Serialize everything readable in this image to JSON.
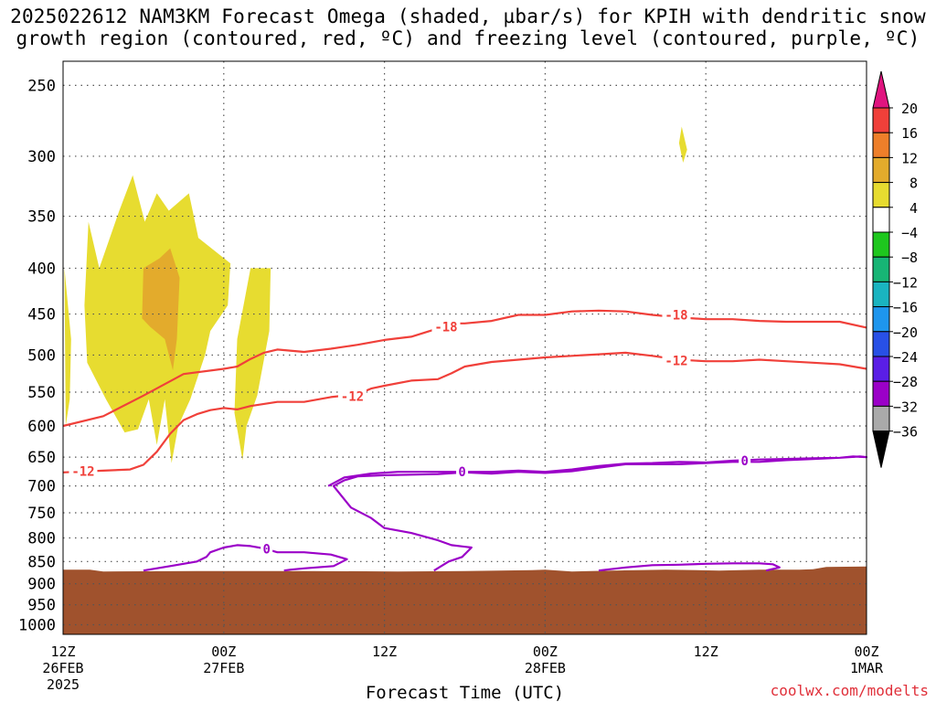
{
  "title": {
    "line1": "2025022612 NAM3KM Forecast Omega (shaded, µbar/s) for KPIH with dendritic snow",
    "line2": "growth region (contoured, red, ºC) and freezing level (contoured, purple, ºC)"
  },
  "credit": "coolwx.com/modelts",
  "colors": {
    "dgz_contour": "#f0403a",
    "freezing_contour": "#9b00c8",
    "terrain": "#a0522d",
    "omega_4_8": "#e7dc30",
    "omega_12_16": "#e3ab2c",
    "grid": "#555555"
  },
  "chart_data": {
    "type": "heatmap",
    "xlabel": "Forecast Time (UTC)",
    "ylabel": "",
    "x_range_hours": [
      0,
      60
    ],
    "y_range_mb": [
      235,
      1025
    ],
    "y_scale": "log-pressure (inverted)",
    "grid": true,
    "x_ticks": [
      {
        "hour": 0,
        "label1": "12Z",
        "label2": "26FEB",
        "label3": "2025"
      },
      {
        "hour": 12,
        "label1": "00Z",
        "label2": "27FEB",
        "label3": ""
      },
      {
        "hour": 24,
        "label1": "12Z",
        "label2": "",
        "label3": ""
      },
      {
        "hour": 36,
        "label1": "00Z",
        "label2": "28FEB",
        "label3": ""
      },
      {
        "hour": 48,
        "label1": "12Z",
        "label2": "",
        "label3": ""
      },
      {
        "hour": 60,
        "label1": "00Z",
        "label2": "1MAR",
        "label3": ""
      }
    ],
    "y_ticks": [
      250,
      300,
      350,
      400,
      450,
      500,
      550,
      600,
      650,
      700,
      750,
      800,
      850,
      900,
      950,
      1000
    ],
    "colorbar": {
      "levels": [
        20,
        16,
        12,
        8,
        4,
        -4,
        -8,
        -12,
        -16,
        -20,
        -24,
        -28,
        -32,
        -36
      ],
      "colors": [
        "#e0147f",
        "#f0403a",
        "#ee7f2a",
        "#e3ab2c",
        "#e7dc30",
        "#ffffff",
        "#1ec71e",
        "#17b575",
        "#1ab4c0",
        "#1e96ee",
        "#2850e6",
        "#5a1ee6",
        "#9b00c8",
        "#aaaaaa",
        "#000000"
      ]
    },
    "omega_regions": [
      {
        "value_range": "4-8",
        "points": [
          [
            0.1,
            400
          ],
          [
            0.6,
            480
          ],
          [
            0.5,
            560
          ],
          [
            0.2,
            600
          ]
        ]
      },
      {
        "value_range": "4-8",
        "points": [
          [
            1.6,
            440
          ],
          [
            1.9,
            355
          ],
          [
            2.7,
            400
          ],
          [
            4.2,
            345
          ],
          [
            5.2,
            315
          ],
          [
            6.1,
            355
          ],
          [
            7.0,
            330
          ],
          [
            7.9,
            345
          ],
          [
            9.4,
            330
          ],
          [
            10.1,
            370
          ],
          [
            12.5,
            395
          ],
          [
            12.3,
            440
          ],
          [
            11.0,
            470
          ],
          [
            10.6,
            500
          ],
          [
            9.5,
            560
          ],
          [
            8.6,
            600
          ],
          [
            8.1,
            660
          ],
          [
            7.6,
            560
          ],
          [
            7.0,
            630
          ],
          [
            6.4,
            560
          ],
          [
            5.6,
            605
          ],
          [
            4.6,
            610
          ],
          [
            3.2,
            560
          ],
          [
            1.8,
            510
          ]
        ]
      },
      {
        "value_range": "4-8",
        "points": [
          [
            13.0,
            480
          ],
          [
            14.0,
            400
          ],
          [
            15.5,
            400
          ],
          [
            15.4,
            470
          ],
          [
            14.5,
            555
          ],
          [
            13.7,
            600
          ],
          [
            13.4,
            655
          ],
          [
            12.8,
            580
          ]
        ]
      },
      {
        "value_range": "4-8",
        "points": [
          [
            46.2,
            278
          ],
          [
            46.6,
            295
          ],
          [
            46.3,
            305
          ],
          [
            46.0,
            290
          ]
        ]
      },
      {
        "value_range": "12-16",
        "points": [
          [
            6.0,
            400
          ],
          [
            7.2,
            390
          ],
          [
            8.0,
            380
          ],
          [
            8.7,
            410
          ],
          [
            8.5,
            480
          ],
          [
            8.2,
            520
          ],
          [
            7.6,
            480
          ],
          [
            6.5,
            465
          ],
          [
            5.9,
            455
          ]
        ]
      }
    ],
    "series": [
      {
        "label": "-18",
        "points": [
          [
            0,
            600
          ],
          [
            3,
            585
          ],
          [
            6,
            555
          ],
          [
            9,
            525
          ],
          [
            12,
            518
          ],
          [
            13,
            515
          ],
          [
            14,
            505
          ],
          [
            15,
            497
          ],
          [
            16,
            493
          ],
          [
            18,
            496
          ],
          [
            20,
            492
          ],
          [
            22,
            487
          ],
          [
            24,
            481
          ],
          [
            26,
            477
          ],
          [
            28,
            467
          ],
          [
            29,
            461
          ],
          [
            30,
            461
          ],
          [
            32,
            458
          ],
          [
            34,
            451
          ],
          [
            36,
            451
          ],
          [
            38,
            447
          ],
          [
            40,
            446
          ],
          [
            42,
            447
          ],
          [
            44,
            451
          ],
          [
            46,
            454
          ],
          [
            48,
            456
          ],
          [
            50,
            456
          ],
          [
            52,
            458
          ],
          [
            54,
            459
          ],
          [
            56,
            459
          ],
          [
            58,
            459
          ],
          [
            60,
            466
          ]
        ]
      },
      {
        "label": "-12",
        "points": [
          [
            0,
            676
          ],
          [
            3,
            673
          ],
          [
            5,
            671
          ],
          [
            6,
            663
          ],
          [
            7,
            641
          ],
          [
            8,
            612
          ],
          [
            9,
            591
          ],
          [
            10,
            582
          ],
          [
            11,
            576
          ],
          [
            12,
            573
          ],
          [
            13,
            575
          ],
          [
            14,
            570
          ],
          [
            16,
            564
          ],
          [
            18,
            564
          ],
          [
            20,
            557
          ],
          [
            22,
            553
          ],
          [
            23,
            545
          ],
          [
            24,
            541
          ],
          [
            26,
            534
          ],
          [
            28,
            532
          ],
          [
            29,
            524
          ],
          [
            30,
            515
          ],
          [
            32,
            509
          ],
          [
            34,
            506
          ],
          [
            36,
            503
          ],
          [
            38,
            501
          ],
          [
            40,
            499
          ],
          [
            42,
            497
          ],
          [
            44,
            501
          ],
          [
            46,
            506
          ],
          [
            48,
            508
          ],
          [
            50,
            508
          ],
          [
            52,
            506
          ],
          [
            54,
            508
          ],
          [
            56,
            510
          ],
          [
            58,
            512
          ],
          [
            60,
            518
          ]
        ]
      },
      {
        "label": "0",
        "points": [
          [
            19.8,
            700
          ],
          [
            21,
            685
          ],
          [
            23,
            678
          ],
          [
            25,
            675
          ],
          [
            28,
            675
          ],
          [
            30,
            675
          ],
          [
            32,
            675
          ],
          [
            34,
            673
          ],
          [
            36,
            675
          ],
          [
            38,
            671
          ],
          [
            40,
            665
          ],
          [
            42,
            661
          ],
          [
            44,
            660
          ],
          [
            46,
            658
          ],
          [
            48,
            659
          ],
          [
            50,
            656
          ],
          [
            52,
            654
          ],
          [
            54,
            653
          ],
          [
            56,
            652
          ],
          [
            58,
            651
          ],
          [
            59,
            649
          ],
          [
            60,
            650
          ],
          [
            59.5,
            649
          ],
          [
            58,
            651
          ],
          [
            56,
            653
          ],
          [
            54,
            655
          ],
          [
            52,
            658
          ],
          [
            50,
            658
          ],
          [
            48,
            660
          ],
          [
            46,
            662
          ],
          [
            44,
            662
          ],
          [
            42,
            662
          ],
          [
            40,
            668
          ],
          [
            38,
            674
          ],
          [
            36,
            677
          ],
          [
            34,
            675
          ],
          [
            32,
            678
          ],
          [
            30,
            676
          ],
          [
            28,
            679
          ],
          [
            26,
            680
          ],
          [
            24,
            681
          ],
          [
            22,
            683
          ],
          [
            21,
            690
          ],
          [
            20.2,
            700
          ],
          [
            21.5,
            740
          ],
          [
            23,
            760
          ],
          [
            24,
            780
          ],
          [
            26,
            790
          ],
          [
            28,
            805
          ],
          [
            29,
            815
          ],
          [
            30.5,
            820
          ],
          [
            29.8,
            840
          ],
          [
            28.8,
            850
          ],
          [
            27.7,
            870
          ]
        ]
      },
      {
        "label": "0",
        "points": [
          [
            6,
            870
          ],
          [
            8,
            860
          ],
          [
            10,
            850
          ],
          [
            10.7,
            840
          ],
          [
            11,
            830
          ],
          [
            12,
            820
          ],
          [
            13,
            815
          ],
          [
            14,
            817
          ],
          [
            15,
            822
          ],
          [
            16,
            830
          ],
          [
            18,
            830
          ],
          [
            20,
            835
          ],
          [
            21.2,
            845
          ],
          [
            20.2,
            860
          ],
          [
            18,
            865
          ],
          [
            17,
            868
          ],
          [
            16.5,
            870
          ]
        ]
      },
      {
        "label": "",
        "points": [
          [
            40,
            870
          ],
          [
            42,
            863
          ],
          [
            44,
            858
          ],
          [
            46,
            857
          ],
          [
            48,
            855
          ],
          [
            50,
            854
          ],
          [
            52,
            854
          ],
          [
            53,
            856
          ],
          [
            53.5,
            863
          ],
          [
            52.5,
            870
          ]
        ]
      }
    ],
    "contour_labels": [
      {
        "text": "-18",
        "hour": 28.6,
        "mb": 465
      },
      {
        "text": "-18",
        "hour": 45.8,
        "mb": 451
      },
      {
        "text": "-12",
        "hour": 21.6,
        "mb": 556
      },
      {
        "text": "-12",
        "hour": 45.8,
        "mb": 507
      },
      {
        "text": "-12",
        "hour": 1.5,
        "mb": 674
      },
      {
        "text": "0",
        "hour": 29.8,
        "mb": 675
      },
      {
        "text": "0",
        "hour": 50.9,
        "mb": 656
      },
      {
        "text": "0",
        "hour": 15.2,
        "mb": 823
      }
    ],
    "terrain": {
      "top_mb": [
        [
          0,
          868
        ],
        [
          2,
          868
        ],
        [
          3,
          872
        ],
        [
          10,
          871
        ],
        [
          18,
          871
        ],
        [
          25,
          872
        ],
        [
          30,
          871
        ],
        [
          35,
          869
        ],
        [
          36,
          868
        ],
        [
          38,
          872
        ],
        [
          41,
          870
        ],
        [
          45,
          868
        ],
        [
          49,
          870
        ],
        [
          52,
          868
        ],
        [
          55,
          868
        ],
        [
          56,
          867
        ],
        [
          57,
          862
        ],
        [
          60,
          861
        ]
      ]
    }
  }
}
